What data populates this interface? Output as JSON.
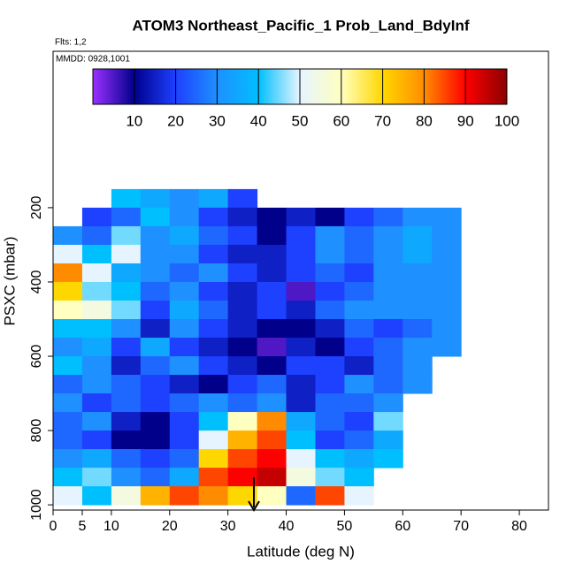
{
  "chart_data": {
    "type": "heatmap",
    "title": "ATOM3 Northeast_Pacific_1 Prob_Land_BdyInf",
    "subtitle": "Flts: 1,2",
    "annotation": "MMDD: 0928,1001",
    "xlabel": "Latitude (deg N)",
    "ylabel": "PSXC (mbar)",
    "xlim": [
      0,
      85
    ],
    "xticks": [
      0,
      5,
      10,
      20,
      30,
      40,
      50,
      60,
      70,
      80
    ],
    "ylim": [
      1014,
      -221
    ],
    "yticks": [
      200,
      400,
      600,
      800,
      1000
    ],
    "x_bins": [
      0,
      5,
      10,
      15,
      20,
      25,
      30,
      35,
      40,
      45,
      50,
      55,
      60,
      65,
      70,
      75
    ],
    "y_bins": [
      150,
      200,
      250,
      300,
      350,
      400,
      450,
      500,
      550,
      600,
      650,
      700,
      750,
      800,
      850,
      900,
      950,
      1000
    ],
    "values": [
      [
        null,
        null,
        40,
        35,
        30,
        35,
        20,
        null,
        null,
        null,
        null,
        null,
        null,
        null,
        null
      ],
      [
        null,
        20,
        25,
        40,
        30,
        20,
        15,
        10,
        15,
        10,
        20,
        25,
        30,
        30,
        null
      ],
      [
        30,
        25,
        45,
        30,
        35,
        25,
        20,
        10,
        20,
        30,
        25,
        30,
        35,
        30,
        null
      ],
      [
        50,
        40,
        50,
        30,
        30,
        20,
        15,
        15,
        20,
        30,
        25,
        30,
        35,
        30,
        null
      ],
      [
        80,
        50,
        35,
        30,
        25,
        30,
        20,
        15,
        20,
        25,
        20,
        30,
        30,
        30,
        null
      ],
      [
        70,
        45,
        40,
        25,
        30,
        20,
        15,
        20,
        5,
        20,
        25,
        30,
        30,
        30,
        null
      ],
      [
        60,
        55,
        45,
        20,
        35,
        25,
        15,
        20,
        15,
        25,
        30,
        30,
        30,
        30,
        null
      ],
      [
        40,
        40,
        30,
        15,
        30,
        20,
        15,
        10,
        10,
        15,
        25,
        20,
        25,
        30,
        null
      ],
      [
        30,
        35,
        20,
        35,
        20,
        15,
        10,
        5,
        15,
        10,
        20,
        25,
        30,
        30,
        null
      ],
      [
        40,
        30,
        15,
        25,
        30,
        20,
        15,
        10,
        20,
        20,
        15,
        25,
        30,
        null,
        null
      ],
      [
        25,
        30,
        25,
        20,
        15,
        10,
        20,
        25,
        15,
        20,
        30,
        25,
        30,
        null,
        null
      ],
      [
        30,
        20,
        25,
        20,
        25,
        30,
        25,
        30,
        15,
        25,
        25,
        30,
        null,
        null,
        null
      ],
      [
        25,
        30,
        15,
        10,
        20,
        40,
        60,
        80,
        35,
        25,
        20,
        45,
        null,
        null,
        null
      ],
      [
        25,
        20,
        10,
        10,
        20,
        50,
        75,
        85,
        40,
        20,
        25,
        35,
        null,
        null,
        null
      ],
      [
        30,
        35,
        25,
        20,
        25,
        70,
        85,
        90,
        50,
        40,
        35,
        40,
        null,
        null,
        null
      ],
      [
        40,
        45,
        30,
        25,
        35,
        85,
        90,
        95,
        55,
        45,
        40,
        null,
        null,
        null,
        null
      ],
      [
        50,
        40,
        55,
        75,
        85,
        80,
        70,
        60,
        25,
        85,
        50,
        null,
        null,
        null,
        null
      ]
    ],
    "colorbar": {
      "lim": [
        0,
        100
      ],
      "ticks": [
        10,
        20,
        30,
        40,
        50,
        60,
        70,
        80,
        90,
        100
      ],
      "colors": [
        "#9b30ff",
        "#00008b",
        "#1e40ff",
        "#1e90ff",
        "#00bfff",
        "#e6f4ff",
        "#ffffc0",
        "#ffd700",
        "#ff8c00",
        "#ff0000",
        "#8b0000"
      ]
    }
  }
}
